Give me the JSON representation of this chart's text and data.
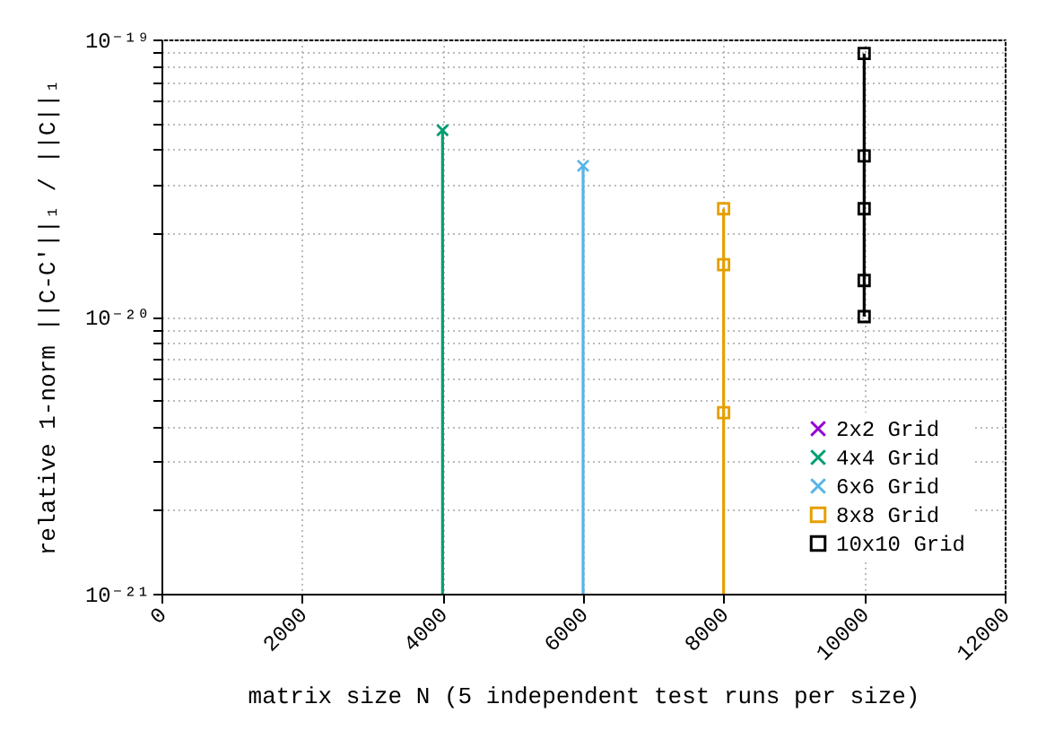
{
  "chart_data": {
    "type": "line",
    "xlabel": "matrix size N (5 independent test runs per size)",
    "ylabel": "relative 1-norm ||C-C'||₁ / ||C||₁",
    "log": "y",
    "grid": true,
    "legend": "bottom right",
    "xlim": [
      0,
      12000
    ],
    "xticks": [
      0,
      2000,
      4000,
      6000,
      8000,
      10000,
      12000
    ],
    "ylim": [
      1e-21,
      1e-19
    ],
    "yticks": [
      {
        "value": 1e-21,
        "label": "10⁻²¹"
      },
      {
        "value": 2e-21,
        "label": null
      },
      {
        "value": 3e-21,
        "label": null
      },
      {
        "value": 4e-21,
        "label": null
      },
      {
        "value": 5e-21,
        "label": null
      },
      {
        "value": 6e-21,
        "label": null
      },
      {
        "value": 7e-21,
        "label": null
      },
      {
        "value": 8e-21,
        "label": null
      },
      {
        "value": 9e-21,
        "label": null
      },
      {
        "value": 1e-20,
        "label": "10⁻²⁰"
      },
      {
        "value": 2e-20,
        "label": null
      },
      {
        "value": 3e-20,
        "label": null
      },
      {
        "value": 4e-20,
        "label": null
      },
      {
        "value": 5e-20,
        "label": null
      },
      {
        "value": 6e-20,
        "label": null
      },
      {
        "value": 7e-20,
        "label": null
      },
      {
        "value": 8e-20,
        "label": null
      },
      {
        "value": 9e-20,
        "label": null
      },
      {
        "value": 1e-19,
        "label": "10⁻¹⁹"
      }
    ],
    "series": [
      {
        "name": "2x2 Grid",
        "color": "#9400d3",
        "marker": "cross"
      },
      {
        "name": "4x4 Grid",
        "color": "#009e73",
        "marker": "cross",
        "x": [
          4000,
          4000
        ],
        "values": [
          1e-21,
          4.7e-20
        ]
      },
      {
        "name": "6x6 Grid",
        "color": "#56b4e9",
        "marker": "cross",
        "x": [
          6000,
          6000
        ],
        "values": [
          1e-21,
          3.5e-20
        ]
      },
      {
        "name": "8x8 Grid",
        "color": "#e69f00",
        "marker": "square",
        "x": [
          8000,
          8000,
          8000,
          8000
        ],
        "values": [
          1e-21,
          4.5e-21,
          1.54e-20,
          2.45e-20
        ]
      },
      {
        "name": "10x10 Grid",
        "color": "#000000",
        "marker": "square",
        "x": [
          10000,
          10000,
          10000,
          10000,
          10000
        ],
        "values": [
          1e-20,
          1.35e-20,
          2.45e-20,
          3.8e-20,
          8.9e-20
        ]
      }
    ]
  }
}
